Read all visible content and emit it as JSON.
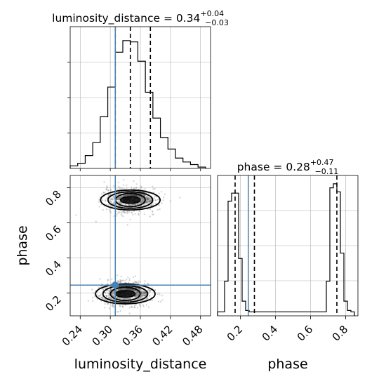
{
  "chart_data": {
    "type": "corner",
    "parameters": [
      "luminosity_distance",
      "phase"
    ],
    "truths": {
      "luminosity_distance": 0.31,
      "phase": 0.245
    },
    "panels": [
      {
        "id": "lumdist-hist",
        "type": "histogram",
        "title": {
          "base": "luminosity_distance = 0.34",
          "sup": "+0.04",
          "sub": "−0.03"
        },
        "xlim": [
          0.22,
          0.5
        ],
        "ylim": [
          0,
          1.0
        ],
        "bin_edges": [
          0.22,
          0.235,
          0.25,
          0.265,
          0.28,
          0.295,
          0.31,
          0.325,
          0.34,
          0.355,
          0.37,
          0.385,
          0.4,
          0.415,
          0.43,
          0.445,
          0.46,
          0.475,
          0.49
        ],
        "counts": [
          0.02,
          0.04,
          0.1,
          0.2,
          0.4,
          0.63,
          0.9,
          0.99,
          0.98,
          0.83,
          0.59,
          0.39,
          0.24,
          0.15,
          0.08,
          0.05,
          0.03,
          0.01
        ],
        "quantiles": [
          0.31,
          0.34,
          0.38
        ],
        "truth": 0.31
      },
      {
        "id": "2d-panel",
        "type": "contour2d",
        "xlim": [
          0.22,
          0.5
        ],
        "ylim": [
          0.07,
          0.87
        ],
        "xticks": [
          "0.24",
          "0.30",
          "0.36",
          "0.42",
          "0.48"
        ],
        "xtick_values": [
          0.24,
          0.3,
          0.36,
          0.42,
          0.48
        ],
        "yticks": [
          "0.2",
          "0.4",
          "0.6",
          "0.8"
        ],
        "ytick_values": [
          0.2,
          0.4,
          0.6,
          0.8
        ],
        "xlabel": "luminosity_distance",
        "ylabel": "phase",
        "modes": [
          {
            "center_x": 0.34,
            "center_y": 0.73,
            "sigma_x": 0.022,
            "sigma_y": 0.035,
            "weight": 0.5
          },
          {
            "center_x": 0.33,
            "center_y": 0.195,
            "sigma_x": 0.022,
            "sigma_y": 0.035,
            "weight": 0.5
          }
        ],
        "truth_x": 0.31,
        "truth_y": 0.245
      },
      {
        "id": "phase-hist",
        "type": "histogram",
        "title": {
          "base": "phase = 0.28",
          "sup": "+0.47",
          "sub": "−0.11"
        },
        "xlim": [
          0.07,
          0.87
        ],
        "ylim": [
          0,
          1.0
        ],
        "xticks": [
          "0.2",
          "0.4",
          "0.6",
          "0.8"
        ],
        "xtick_values": [
          0.2,
          0.4,
          0.6,
          0.8
        ],
        "xlabel": "phase",
        "bin_edges": [
          0.07,
          0.09,
          0.11,
          0.13,
          0.15,
          0.17,
          0.19,
          0.21,
          0.23,
          0.25,
          0.27,
          0.29,
          0.31,
          0.33,
          0.35,
          0.37,
          0.39,
          0.41,
          0.43,
          0.45,
          0.47,
          0.49,
          0.51,
          0.53,
          0.55,
          0.57,
          0.59,
          0.61,
          0.63,
          0.65,
          0.67,
          0.69,
          0.71,
          0.73,
          0.75,
          0.77,
          0.79,
          0.81,
          0.83,
          0.85
        ],
        "counts": [
          0.03,
          0.03,
          0.26,
          0.86,
          0.92,
          0.92,
          0.43,
          0.11,
          0.04,
          0.03,
          0.03,
          0.03,
          0.03,
          0.03,
          0.03,
          0.03,
          0.03,
          0.03,
          0.03,
          0.03,
          0.03,
          0.03,
          0.03,
          0.03,
          0.03,
          0.03,
          0.03,
          0.03,
          0.03,
          0.03,
          0.03,
          0.26,
          0.96,
          0.99,
          0.93,
          0.47,
          0.11,
          0.04,
          0.03
        ],
        "quantiles": [
          0.17,
          0.28,
          0.75
        ],
        "truth": 0.245
      }
    ],
    "colors": {
      "line": "#000000",
      "truth": "#4682b4",
      "grid": "#b0b0b0",
      "scatter": "#7f7f7f"
    }
  }
}
